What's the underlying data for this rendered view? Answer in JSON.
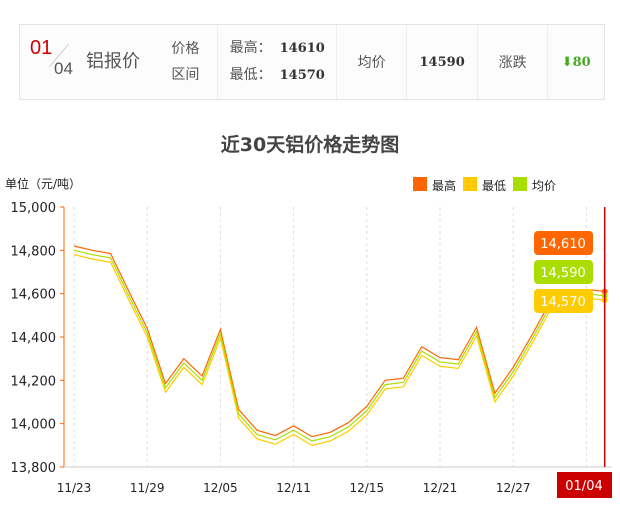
{
  "header": {
    "month": "01",
    "day": "04",
    "name": "铝报价",
    "range_label_1": "价格",
    "range_label_2": "区间",
    "high_label": "最高：",
    "high": "14610",
    "low_label": "最低：",
    "low": "14570",
    "avg_label": "均价",
    "avg": "14590",
    "change_label": "涨跌",
    "change": "80",
    "change_direction": "down",
    "change_color": "#44aa22"
  },
  "chart_data": {
    "type": "line",
    "title": "近30天铝价格走势图",
    "ylabel": "单位（元/吨）",
    "ylim": [
      13800,
      15000
    ],
    "yticks": [
      "15,000",
      "14,800",
      "14,600",
      "14,400",
      "14,200",
      "14,000",
      "13,800"
    ],
    "xtick_labels": [
      "11/23",
      "11/29",
      "12/05",
      "12/11",
      "12/15",
      "12/21",
      "12/27"
    ],
    "tick_every": 4,
    "current_label": "01/04",
    "legend_position": "top-right",
    "grid": "vertical dashed",
    "series": [
      {
        "name": "最高",
        "color": "#ff6600",
        "values": [
          14820,
          14800,
          14785,
          14610,
          14440,
          14185,
          14300,
          14220,
          14435,
          14065,
          13970,
          13945,
          13990,
          13940,
          13960,
          14005,
          14080,
          14200,
          14210,
          14355,
          14305,
          14295,
          14445,
          14140,
          14260,
          14405,
          14560,
          14600,
          14620,
          14610
        ],
        "last_label": "14,610"
      },
      {
        "name": "最低",
        "color": "#ffcc00",
        "values": [
          14780,
          14760,
          14745,
          14570,
          14400,
          14145,
          14260,
          14180,
          14395,
          14025,
          13930,
          13905,
          13950,
          13900,
          13920,
          13965,
          14040,
          14160,
          14170,
          14315,
          14265,
          14255,
          14405,
          14100,
          14220,
          14365,
          14520,
          14560,
          14580,
          14570
        ],
        "last_label": "14,570"
      },
      {
        "name": "均价",
        "color": "#aadd00",
        "values": [
          14800,
          14780,
          14765,
          14590,
          14420,
          14165,
          14280,
          14200,
          14415,
          14045,
          13950,
          13925,
          13970,
          13920,
          13940,
          13985,
          14060,
          14180,
          14190,
          14335,
          14285,
          14275,
          14425,
          14120,
          14240,
          14385,
          14540,
          14580,
          14600,
          14590
        ],
        "last_label": "14,590"
      }
    ]
  }
}
